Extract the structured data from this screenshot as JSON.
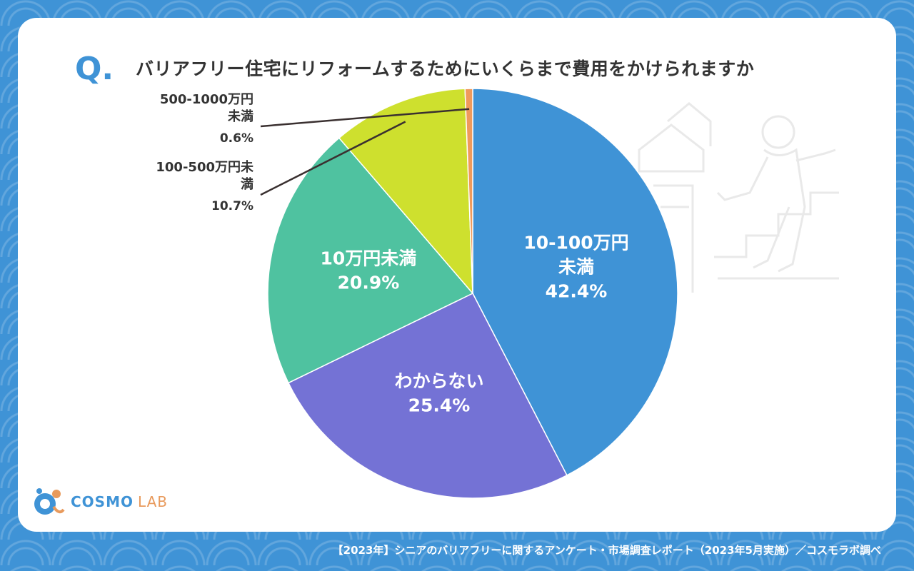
{
  "question_mark": "Q.",
  "title": "バリアフリー住宅にリフォームするためにいくらまで費用をかけられますか",
  "logo": {
    "name": "COSMO",
    "suffix": "LAB"
  },
  "footer": "【2023年】シニアのバリアフリーに関するアンケート・市場調査レポート（2023年5月実施）／コスモラボ調べ",
  "chart_data": {
    "type": "pie",
    "unit": "%",
    "slices": [
      {
        "label_lines": [
          "10-100万円",
          "未満"
        ],
        "value": 42.4,
        "value_label": "42.4%",
        "color": "#3f93d6",
        "label_inside": true
      },
      {
        "label_lines": [
          "わからない"
        ],
        "value": 25.4,
        "value_label": "25.4%",
        "color": "#7472d5",
        "label_inside": true
      },
      {
        "label_lines": [
          "10万円未満"
        ],
        "value": 20.9,
        "value_label": "20.9%",
        "color": "#4fc2a0",
        "label_inside": true
      },
      {
        "label_lines": [
          "100-500万円未",
          "満"
        ],
        "value": 10.7,
        "value_label": "10.7%",
        "color": "#cee02e",
        "label_inside": false
      },
      {
        "label_lines": [
          "500-1000万円",
          "未満"
        ],
        "value": 0.6,
        "value_label": "0.6%",
        "color": "#ef9a5c",
        "label_inside": false
      }
    ]
  }
}
